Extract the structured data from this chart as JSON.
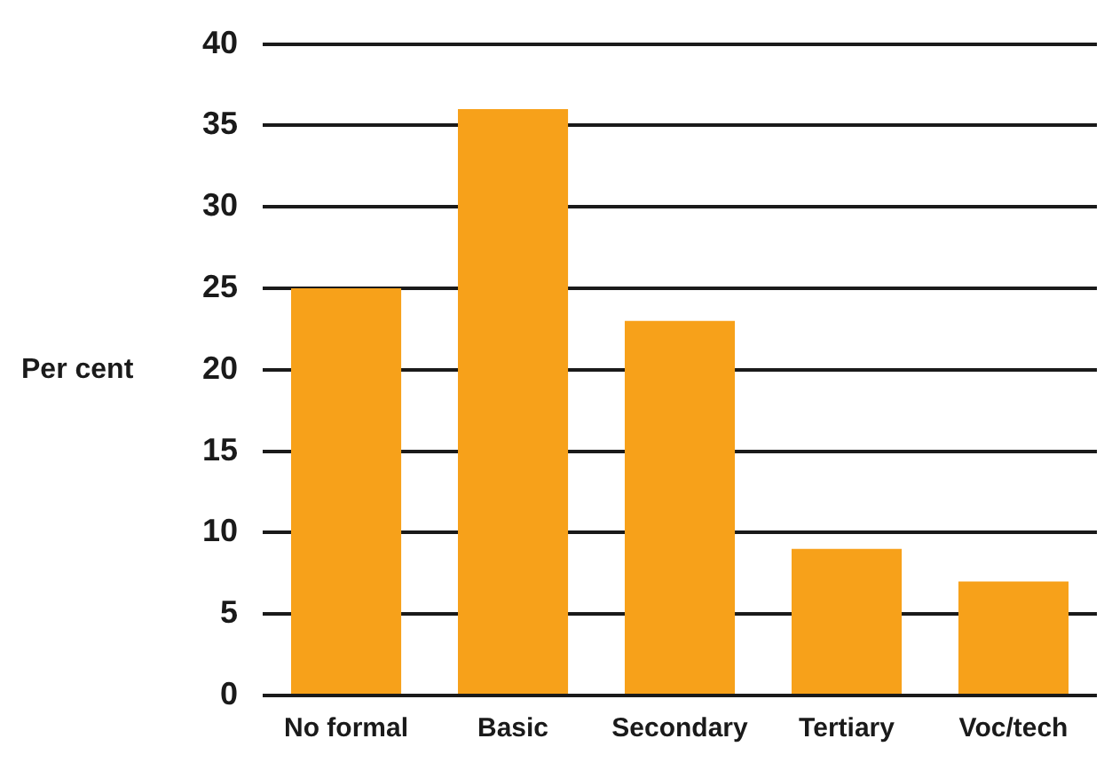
{
  "chart_data": {
    "type": "bar",
    "ylabel": "Per cent",
    "categories": [
      "No formal",
      "Basic",
      "Secondary",
      "Tertiary",
      "Voc/tech"
    ],
    "values": [
      25,
      36,
      23,
      9,
      7
    ],
    "color": "#f7a11a",
    "ylim": [
      0,
      40
    ],
    "yticks": [
      0,
      5,
      10,
      15,
      20,
      25,
      30,
      35,
      40
    ],
    "grid": "y",
    "legend": false
  }
}
